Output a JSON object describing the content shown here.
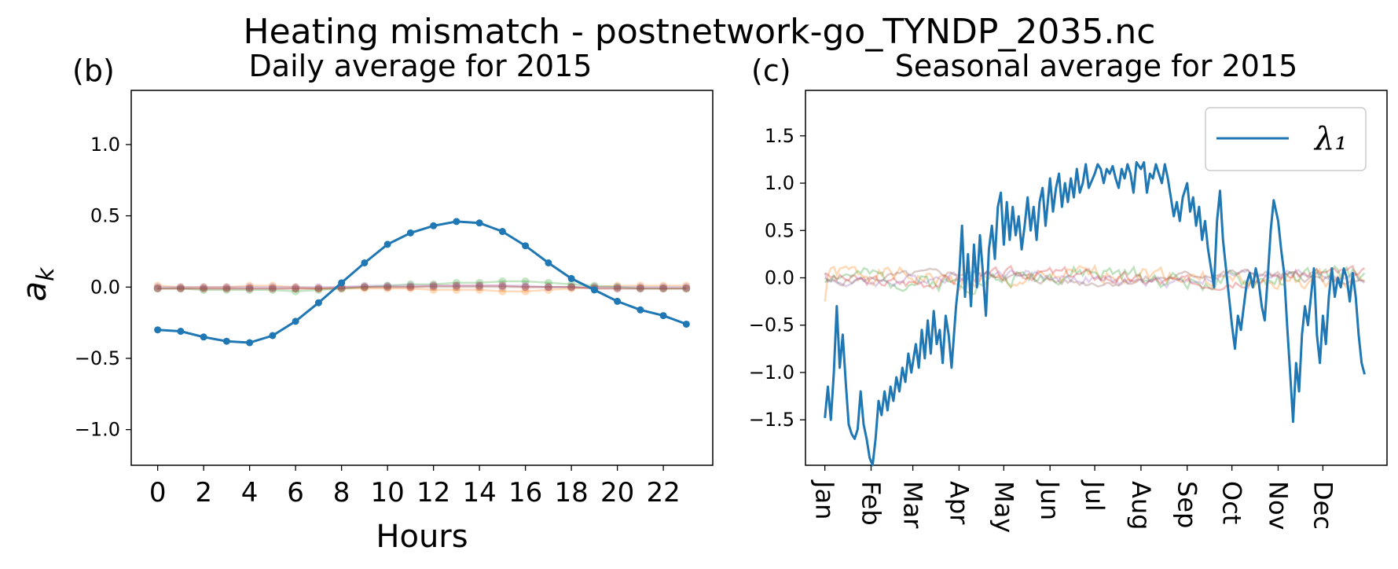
{
  "figure": {
    "suptitle": "Heating mismatch - postnetwork-go_TYNDP_2035.nc"
  },
  "colors": {
    "lambda1": "#1f77b4",
    "lambda2": "#ff7f0e",
    "lambda3": "#2ca02c",
    "lambda4": "#d62728",
    "lambda5": "#9467bd",
    "lambda6": "#8c564b"
  },
  "chart_data": [
    {
      "type": "line",
      "panel_label": "(b)",
      "title": "Daily average for 2015",
      "xlabel": "Hours",
      "ylabel": "a_k",
      "xlim": [
        -1.15,
        24.15
      ],
      "ylim": [
        -1.25,
        1.38
      ],
      "x_ticks": [
        0,
        2,
        4,
        6,
        8,
        10,
        12,
        14,
        16,
        18,
        20,
        22
      ],
      "y_ticks": [
        -1.0,
        -0.5,
        0.0,
        0.5,
        1.0
      ],
      "y_tick_labels": [
        "−1.0",
        "−0.5",
        "0.0",
        "0.5",
        "1.0"
      ],
      "grid": false,
      "markers": true,
      "x": [
        0,
        1,
        2,
        3,
        4,
        5,
        6,
        7,
        8,
        9,
        10,
        11,
        12,
        13,
        14,
        15,
        16,
        17,
        18,
        19,
        20,
        21,
        22,
        23
      ],
      "series": [
        {
          "values": [
            -0.3,
            -0.31,
            -0.35,
            -0.38,
            -0.39,
            -0.34,
            -0.24,
            -0.11,
            0.03,
            0.17,
            0.3,
            0.38,
            0.43,
            0.46,
            0.45,
            0.39,
            0.29,
            0.17,
            0.06,
            -0.02,
            -0.1,
            -0.16,
            -0.2,
            -0.26
          ]
        },
        {
          "values": [
            0.01,
            0.0,
            0.0,
            0.0,
            0.01,
            0.01,
            0.0,
            -0.01,
            -0.01,
            -0.01,
            -0.01,
            -0.01,
            -0.02,
            -0.02,
            -0.02,
            -0.03,
            -0.03,
            -0.02,
            -0.01,
            0.0,
            0.01,
            0.01,
            0.01,
            0.01
          ]
        },
        {
          "values": [
            -0.01,
            -0.01,
            -0.02,
            -0.02,
            -0.02,
            -0.02,
            -0.03,
            -0.02,
            -0.01,
            0.0,
            0.01,
            0.02,
            0.02,
            0.03,
            0.03,
            0.04,
            0.04,
            0.03,
            0.02,
            0.01,
            0.0,
            -0.01,
            -0.01,
            -0.01
          ]
        },
        {
          "values": [
            -0.01,
            -0.01,
            -0.01,
            -0.01,
            -0.01,
            -0.01,
            -0.01,
            -0.01,
            0.0,
            0.0,
            0.0,
            0.0,
            0.01,
            0.01,
            0.01,
            0.01,
            0.0,
            0.0,
            0.0,
            -0.01,
            -0.01,
            -0.01,
            -0.01,
            -0.01
          ]
        },
        {
          "values": [
            0.0,
            0.0,
            0.0,
            0.0,
            0.0,
            0.0,
            0.0,
            0.0,
            0.0,
            0.01,
            0.01,
            0.01,
            0.01,
            0.01,
            0.01,
            0.01,
            0.01,
            0.0,
            0.0,
            0.0,
            0.0,
            0.0,
            0.0,
            0.0
          ]
        },
        {
          "values": [
            -0.01,
            -0.01,
            -0.01,
            -0.01,
            -0.01,
            -0.01,
            -0.01,
            -0.01,
            -0.01,
            0.0,
            0.0,
            0.0,
            0.0,
            0.0,
            0.0,
            0.0,
            0.0,
            0.0,
            0.0,
            -0.01,
            -0.01,
            -0.01,
            -0.01,
            -0.01
          ]
        }
      ]
    },
    {
      "type": "line",
      "panel_label": "(c)",
      "title": "Seasonal average for 2015",
      "xlabel": "",
      "ylabel": "",
      "xlim": [
        "2014-12-19",
        "2016-01-13"
      ],
      "ylim": [
        -1.98,
        1.98
      ],
      "x_ticks": [
        "2015-01-01",
        "2015-02-01",
        "2015-03-01",
        "2015-04-01",
        "2015-05-01",
        "2015-06-01",
        "2015-07-01",
        "2015-08-01",
        "2015-09-01",
        "2015-10-01",
        "2015-11-01",
        "2015-12-01"
      ],
      "x_tick_labels": [
        "Jan",
        "Feb",
        "Mar",
        "Apr",
        "May",
        "Jun",
        "Jul",
        "Aug",
        "Sep",
        "Oct",
        "Nov",
        "Dec"
      ],
      "y_ticks": [
        -1.5,
        -1.0,
        -0.5,
        0.0,
        0.5,
        1.0,
        1.5
      ],
      "y_tick_labels": [
        "−1.5",
        "−1.0",
        "−0.5",
        "0.0",
        "0.5",
        "1.0",
        "1.5"
      ],
      "grid": false,
      "legend": {
        "position": "top-right",
        "entries": [
          "λ₁"
        ]
      },
      "series": [
        {
          "name": "λ₁",
          "points": [
            [
              "2015-01-01",
              -1.48
            ],
            [
              "2015-01-03",
              -1.15
            ],
            [
              "2015-01-05",
              -1.5
            ],
            [
              "2015-01-07",
              -1.0
            ],
            [
              "2015-01-09",
              -0.3
            ],
            [
              "2015-01-11",
              -0.95
            ],
            [
              "2015-01-13",
              -0.6
            ],
            [
              "2015-01-15",
              -1.1
            ],
            [
              "2015-01-17",
              -1.55
            ],
            [
              "2015-01-19",
              -1.65
            ],
            [
              "2015-01-21",
              -1.7
            ],
            [
              "2015-01-23",
              -1.6
            ],
            [
              "2015-01-25",
              -1.2
            ],
            [
              "2015-01-27",
              -1.55
            ],
            [
              "2015-01-29",
              -1.7
            ],
            [
              "2015-01-31",
              -1.9
            ],
            [
              "2015-02-02",
              -1.98
            ],
            [
              "2015-02-04",
              -1.7
            ],
            [
              "2015-02-06",
              -1.3
            ],
            [
              "2015-02-08",
              -1.45
            ],
            [
              "2015-02-10",
              -1.2
            ],
            [
              "2015-02-12",
              -1.4
            ],
            [
              "2015-02-14",
              -1.15
            ],
            [
              "2015-02-16",
              -1.3
            ],
            [
              "2015-02-18",
              -1.05
            ],
            [
              "2015-02-20",
              -1.2
            ],
            [
              "2015-02-22",
              -0.95
            ],
            [
              "2015-02-24",
              -1.1
            ],
            [
              "2015-02-26",
              -0.8
            ],
            [
              "2015-02-28",
              -1.0
            ],
            [
              "2015-03-03",
              -0.7
            ],
            [
              "2015-03-05",
              -0.95
            ],
            [
              "2015-03-07",
              -0.55
            ],
            [
              "2015-03-09",
              -0.85
            ],
            [
              "2015-03-11",
              -0.45
            ],
            [
              "2015-03-13",
              -0.8
            ],
            [
              "2015-03-15",
              -0.35
            ],
            [
              "2015-03-17",
              -0.7
            ],
            [
              "2015-03-19",
              -0.55
            ],
            [
              "2015-03-21",
              -0.9
            ],
            [
              "2015-03-23",
              -0.4
            ],
            [
              "2015-03-25",
              -0.6
            ],
            [
              "2015-03-27",
              -0.95
            ],
            [
              "2015-03-30",
              -0.3
            ],
            [
              "2015-04-01",
              0.0
            ],
            [
              "2015-04-03",
              0.55
            ],
            [
              "2015-04-05",
              -0.2
            ],
            [
              "2015-04-07",
              0.25
            ],
            [
              "2015-04-09",
              -0.3
            ],
            [
              "2015-04-11",
              0.35
            ],
            [
              "2015-04-13",
              -0.1
            ],
            [
              "2015-04-15",
              0.45
            ],
            [
              "2015-04-17",
              0.05
            ],
            [
              "2015-04-19",
              -0.4
            ],
            [
              "2015-04-21",
              0.3
            ],
            [
              "2015-04-23",
              0.55
            ],
            [
              "2015-04-25",
              0.2
            ],
            [
              "2015-04-27",
              0.75
            ],
            [
              "2015-04-29",
              0.9
            ],
            [
              "2015-05-01",
              0.35
            ],
            [
              "2015-05-03",
              0.8
            ],
            [
              "2015-05-05",
              0.4
            ],
            [
              "2015-05-07",
              0.75
            ],
            [
              "2015-05-09",
              0.45
            ],
            [
              "2015-05-11",
              0.65
            ],
            [
              "2015-05-13",
              0.3
            ],
            [
              "2015-05-15",
              0.55
            ],
            [
              "2015-05-17",
              0.85
            ],
            [
              "2015-05-19",
              0.5
            ],
            [
              "2015-05-21",
              0.75
            ],
            [
              "2015-05-23",
              0.4
            ],
            [
              "2015-05-25",
              0.8
            ],
            [
              "2015-05-27",
              0.95
            ],
            [
              "2015-05-29",
              0.55
            ],
            [
              "2015-06-01",
              1.05
            ],
            [
              "2015-06-03",
              0.7
            ],
            [
              "2015-06-05",
              0.95
            ],
            [
              "2015-06-07",
              1.1
            ],
            [
              "2015-06-09",
              0.75
            ],
            [
              "2015-06-11",
              1.0
            ],
            [
              "2015-06-13",
              0.8
            ],
            [
              "2015-06-15",
              1.05
            ],
            [
              "2015-06-17",
              0.85
            ],
            [
              "2015-06-19",
              1.15
            ],
            [
              "2015-06-21",
              0.9
            ],
            [
              "2015-06-23",
              1.0
            ],
            [
              "2015-06-25",
              1.2
            ],
            [
              "2015-06-27",
              0.95
            ],
            [
              "2015-07-01",
              1.1
            ],
            [
              "2015-07-03",
              1.2
            ],
            [
              "2015-07-05",
              1.15
            ],
            [
              "2015-07-07",
              1.0
            ],
            [
              "2015-07-09",
              1.15
            ],
            [
              "2015-07-11",
              1.1
            ],
            [
              "2015-07-13",
              1.18
            ],
            [
              "2015-07-15",
              1.05
            ],
            [
              "2015-07-17",
              0.95
            ],
            [
              "2015-07-19",
              1.15
            ],
            [
              "2015-07-21",
              1.05
            ],
            [
              "2015-07-23",
              1.2
            ],
            [
              "2015-07-25",
              1.1
            ],
            [
              "2015-07-27",
              0.9
            ],
            [
              "2015-07-29",
              1.22
            ],
            [
              "2015-08-01",
              1.15
            ],
            [
              "2015-08-03",
              1.22
            ],
            [
              "2015-08-05",
              0.9
            ],
            [
              "2015-08-07",
              1.1
            ],
            [
              "2015-08-09",
              1.05
            ],
            [
              "2015-08-11",
              1.2
            ],
            [
              "2015-08-13",
              1.1
            ],
            [
              "2015-08-15",
              1.0
            ],
            [
              "2015-08-17",
              1.2
            ],
            [
              "2015-08-19",
              1.05
            ],
            [
              "2015-08-21",
              0.85
            ],
            [
              "2015-08-23",
              0.65
            ],
            [
              "2015-08-25",
              0.8
            ],
            [
              "2015-08-27",
              0.6
            ],
            [
              "2015-08-29",
              0.85
            ],
            [
              "2015-09-01",
              1.0
            ],
            [
              "2015-09-03",
              0.7
            ],
            [
              "2015-09-05",
              0.85
            ],
            [
              "2015-09-07",
              0.55
            ],
            [
              "2015-09-09",
              0.75
            ],
            [
              "2015-09-11",
              0.4
            ],
            [
              "2015-09-13",
              0.6
            ],
            [
              "2015-09-15",
              0.3
            ],
            [
              "2015-09-17",
              0.1
            ],
            [
              "2015-09-19",
              -0.1
            ],
            [
              "2015-09-21",
              0.6
            ],
            [
              "2015-09-23",
              0.92
            ],
            [
              "2015-09-25",
              0.4
            ],
            [
              "2015-09-27",
              0.1
            ],
            [
              "2015-09-29",
              -0.2
            ],
            [
              "2015-10-01",
              -0.5
            ],
            [
              "2015-10-03",
              -0.75
            ],
            [
              "2015-10-05",
              -0.4
            ],
            [
              "2015-10-07",
              -0.55
            ],
            [
              "2015-10-09",
              -0.3
            ],
            [
              "2015-10-11",
              -0.05
            ],
            [
              "2015-10-13",
              0.05
            ],
            [
              "2015-10-15",
              -0.1
            ],
            [
              "2015-10-17",
              0.1
            ],
            [
              "2015-10-19",
              -0.05
            ],
            [
              "2015-10-21",
              -0.3
            ],
            [
              "2015-10-23",
              -0.45
            ],
            [
              "2015-10-25",
              0.0
            ],
            [
              "2015-10-27",
              0.5
            ],
            [
              "2015-10-29",
              0.82
            ],
            [
              "2015-11-01",
              0.6
            ],
            [
              "2015-11-03",
              0.3
            ],
            [
              "2015-11-05",
              0.05
            ],
            [
              "2015-11-07",
              -0.5
            ],
            [
              "2015-11-09",
              -1.0
            ],
            [
              "2015-11-11",
              -1.52
            ],
            [
              "2015-11-13",
              -0.9
            ],
            [
              "2015-11-15",
              -1.2
            ],
            [
              "2015-11-17",
              -0.6
            ],
            [
              "2015-11-19",
              -0.3
            ],
            [
              "2015-11-21",
              -0.5
            ],
            [
              "2015-11-23",
              -0.2
            ],
            [
              "2015-11-25",
              0.1
            ],
            [
              "2015-11-27",
              -0.6
            ],
            [
              "2015-11-29",
              -0.9
            ],
            [
              "2015-12-01",
              -0.4
            ],
            [
              "2015-12-03",
              -0.7
            ],
            [
              "2015-12-05",
              -0.2
            ],
            [
              "2015-12-07",
              0.1
            ],
            [
              "2015-12-09",
              -0.2
            ],
            [
              "2015-12-11",
              0.0
            ],
            [
              "2015-12-13",
              -0.1
            ],
            [
              "2015-12-15",
              0.1
            ],
            [
              "2015-12-17",
              0.0
            ],
            [
              "2015-12-19",
              -0.25
            ],
            [
              "2015-12-21",
              0.05
            ],
            [
              "2015-12-23",
              -0.2
            ],
            [
              "2015-12-25",
              -0.6
            ],
            [
              "2015-12-27",
              -0.9
            ],
            [
              "2015-12-29",
              -1.02
            ]
          ]
        },
        {
          "amplitude": 0.16,
          "baseline_start": -0.25,
          "baseline_end": -0.2
        },
        {
          "amplitude": 0.16,
          "baseline_start": -0.05,
          "baseline_end": 0.05
        },
        {
          "amplitude": 0.12,
          "baseline_start": 0.05,
          "baseline_end": 0.05
        },
        {
          "amplitude": 0.1,
          "baseline_start": 0.05,
          "baseline_end": 0.05
        },
        {
          "amplitude": 0.08,
          "baseline_start": 0.0,
          "baseline_end": 0.0
        }
      ]
    }
  ]
}
